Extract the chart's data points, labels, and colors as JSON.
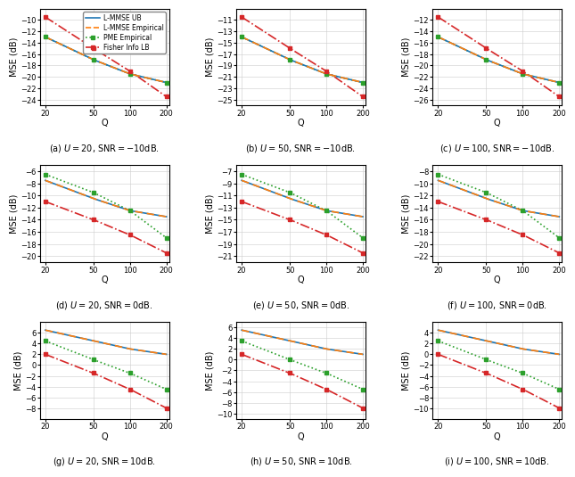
{
  "Q": [
    20,
    50,
    100,
    200
  ],
  "subplots": [
    {
      "label": "(a) $U = 20$, SNR$=-10$dB.",
      "lmmse_ub": [
        -13.0,
        -17.0,
        -19.5,
        -21.0
      ],
      "lmmse_emp": [
        -13.0,
        -17.0,
        -19.5,
        -21.0
      ],
      "pme_emp": [
        -13.0,
        -17.0,
        -19.5,
        -21.0
      ],
      "fisher_lb": [
        -9.5,
        -15.0,
        -19.0,
        -23.5
      ],
      "ylim": [
        -25,
        -8
      ],
      "yticks": [
        -24,
        -22,
        -20,
        -18,
        -16,
        -14,
        -12,
        -10
      ]
    },
    {
      "label": "(b) $U = 50$, SNR$=-10$dB.",
      "lmmse_ub": [
        -14.0,
        -18.0,
        -20.5,
        -22.0
      ],
      "lmmse_emp": [
        -14.0,
        -18.0,
        -20.5,
        -22.0
      ],
      "pme_emp": [
        -14.0,
        -18.0,
        -20.5,
        -22.0
      ],
      "fisher_lb": [
        -10.5,
        -16.0,
        -20.0,
        -24.5
      ],
      "ylim": [
        -26,
        -9
      ],
      "yticks": [
        -25,
        -23,
        -21,
        -19,
        -17,
        -15,
        -13,
        -11
      ]
    },
    {
      "label": "(c) $U = 100$, SNR$=-10$dB.",
      "lmmse_ub": [
        -15.0,
        -19.0,
        -21.5,
        -23.0
      ],
      "lmmse_emp": [
        -15.0,
        -19.0,
        -21.5,
        -23.0
      ],
      "pme_emp": [
        -15.0,
        -19.0,
        -21.5,
        -23.0
      ],
      "fisher_lb": [
        -11.5,
        -17.0,
        -21.0,
        -25.5
      ],
      "ylim": [
        -27,
        -10
      ],
      "yticks": [
        -26,
        -24,
        -22,
        -20,
        -18,
        -16,
        -14,
        -12
      ]
    },
    {
      "label": "(d) $U = 20$, SNR$=0$dB.",
      "lmmse_ub": [
        -7.5,
        -10.5,
        -12.5,
        -13.5
      ],
      "lmmse_emp": [
        -7.5,
        -10.5,
        -12.5,
        -13.5
      ],
      "pme_emp": [
        -6.5,
        -9.5,
        -12.5,
        -17.0
      ],
      "fisher_lb": [
        -11.0,
        -14.0,
        -16.5,
        -19.5
      ],
      "ylim": [
        -21,
        -5
      ],
      "yticks": [
        -20,
        -18,
        -16,
        -14,
        -12,
        -10,
        -8,
        -6
      ]
    },
    {
      "label": "(e) $U = 50$, SNR$=0$dB.",
      "lmmse_ub": [
        -8.5,
        -11.5,
        -13.5,
        -14.5
      ],
      "lmmse_emp": [
        -8.5,
        -11.5,
        -13.5,
        -14.5
      ],
      "pme_emp": [
        -7.5,
        -10.5,
        -13.5,
        -18.0
      ],
      "fisher_lb": [
        -12.0,
        -15.0,
        -17.5,
        -20.5
      ],
      "ylim": [
        -22,
        -6
      ],
      "yticks": [
        -21,
        -19,
        -17,
        -15,
        -13,
        -11,
        -9,
        -7
      ]
    },
    {
      "label": "(f) $U = 100$, SNR$=0$dB.",
      "lmmse_ub": [
        -9.5,
        -12.5,
        -14.5,
        -15.5
      ],
      "lmmse_emp": [
        -9.5,
        -12.5,
        -14.5,
        -15.5
      ],
      "pme_emp": [
        -8.5,
        -11.5,
        -14.5,
        -19.0
      ],
      "fisher_lb": [
        -13.0,
        -16.0,
        -18.5,
        -21.5
      ],
      "ylim": [
        -23,
        -7
      ],
      "yticks": [
        -22,
        -20,
        -18,
        -16,
        -14,
        -12,
        -10,
        -8
      ]
    },
    {
      "label": "(g) $U = 20$, SNR$=10$dB.",
      "lmmse_ub": [
        6.5,
        4.5,
        3.0,
        2.0
      ],
      "lmmse_emp": [
        6.5,
        4.5,
        3.0,
        2.0
      ],
      "pme_emp": [
        4.5,
        1.0,
        -1.5,
        -4.5
      ],
      "fisher_lb": [
        2.0,
        -1.5,
        -4.5,
        -8.0
      ],
      "ylim": [
        -10,
        8
      ],
      "yticks": [
        -8,
        -6,
        -4,
        -2,
        0,
        2,
        4,
        6
      ]
    },
    {
      "label": "(h) $U = 50$, SNR$=10$dB.",
      "lmmse_ub": [
        5.5,
        3.5,
        2.0,
        1.0
      ],
      "lmmse_emp": [
        5.5,
        3.5,
        2.0,
        1.0
      ],
      "pme_emp": [
        3.5,
        0.0,
        -2.5,
        -5.5
      ],
      "fisher_lb": [
        1.0,
        -2.5,
        -5.5,
        -9.0
      ],
      "ylim": [
        -11,
        7
      ],
      "yticks": [
        -10,
        -8,
        -6,
        -4,
        -2,
        0,
        2,
        4,
        6
      ]
    },
    {
      "label": "(i) $U = 100$, SNR$=10$dB.",
      "lmmse_ub": [
        4.5,
        2.5,
        1.0,
        0.0
      ],
      "lmmse_emp": [
        4.5,
        2.5,
        1.0,
        0.0
      ],
      "pme_emp": [
        2.5,
        -1.0,
        -3.5,
        -6.5
      ],
      "fisher_lb": [
        0.0,
        -3.5,
        -6.5,
        -10.0
      ],
      "ylim": [
        -12,
        6
      ],
      "yticks": [
        -10,
        -8,
        -6,
        -4,
        -2,
        0,
        2,
        4
      ]
    }
  ],
  "colors": {
    "lmmse_ub": "#1f77b4",
    "lmmse_emp": "#ff7f0e",
    "pme_emp": "#2ca02c",
    "fisher_lb": "#d62728"
  },
  "legend_labels": [
    "L-MMSE UB",
    "L-MMSE Empirical",
    "PME Empirical",
    "Fisher Info LB"
  ]
}
